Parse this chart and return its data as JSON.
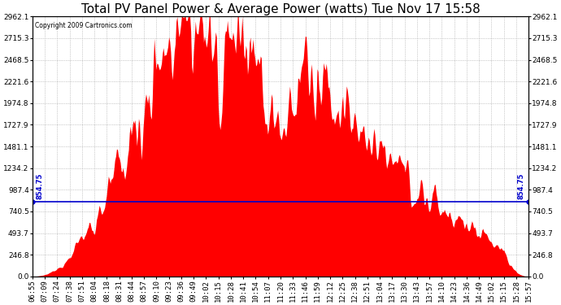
{
  "title": "Total PV Panel Power & Average Power (watts) Tue Nov 17 15:58",
  "copyright": "Copyright 2009 Cartronics.com",
  "avg_line_value": 854.75,
  "avg_line_label": "854.75",
  "y_max": 2962.1,
  "y_min": 0.0,
  "yticks_right": [
    0.0,
    246.8,
    493.7,
    740.5,
    987.4,
    1234.2,
    1481.1,
    1727.9,
    1974.8,
    2221.6,
    2468.5,
    2715.3,
    2962.1
  ],
  "bar_color": "#FF0000",
  "line_color": "#0000CC",
  "grid_color": "#888888",
  "bg_color": "#FFFFFF",
  "title_fontsize": 11,
  "tick_fontsize": 6.5,
  "time_labels": [
    "06:55",
    "07:09",
    "07:24",
    "07:38",
    "07:51",
    "08:04",
    "08:18",
    "08:31",
    "08:44",
    "08:57",
    "09:10",
    "09:23",
    "09:36",
    "09:49",
    "10:02",
    "10:15",
    "10:28",
    "10:41",
    "10:54",
    "11:07",
    "11:20",
    "11:33",
    "11:46",
    "11:59",
    "12:12",
    "12:25",
    "12:38",
    "12:51",
    "13:04",
    "13:17",
    "13:30",
    "13:43",
    "13:57",
    "14:10",
    "14:23",
    "14:36",
    "14:49",
    "15:02",
    "15:15",
    "15:28",
    "15:57"
  ]
}
